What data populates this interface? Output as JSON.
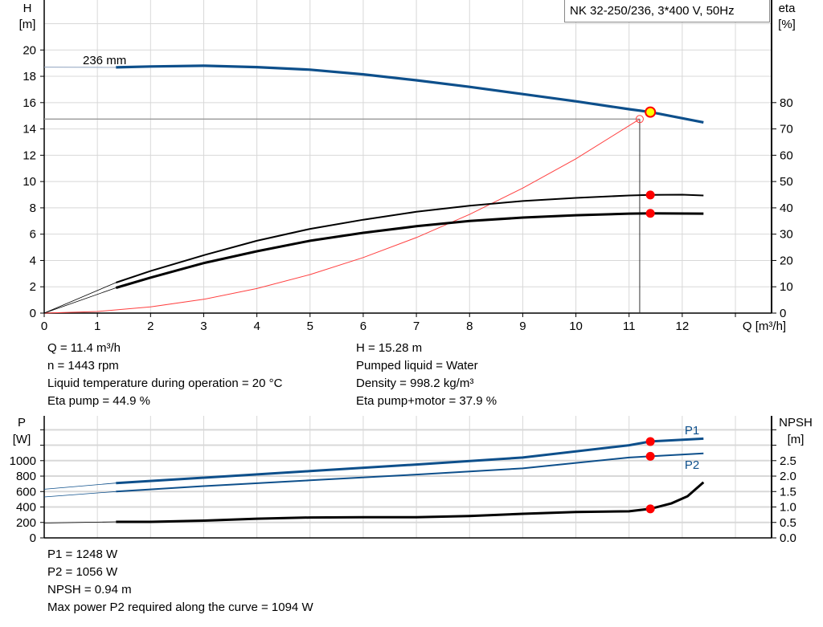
{
  "title": "NK 32-250/236, 3*400 V, 50Hz",
  "chart_data": [
    {
      "type": "line",
      "title": "NK 32-250/236, 3*400 V, 50Hz",
      "xlabel": "Q [m³/h]",
      "ylabel": "H\n[m]",
      "ylabel_parts": [
        "H",
        "[m]"
      ],
      "y2label_parts": [
        "eta",
        "[%]"
      ],
      "xlim": [
        0,
        13.68
      ],
      "ylim": [
        0,
        23.8
      ],
      "y2lim": [
        0,
        119
      ],
      "x_ticks": [
        0,
        1,
        2,
        3,
        4,
        5,
        6,
        7,
        8,
        9,
        10,
        11,
        12
      ],
      "y_ticks": [
        0,
        2,
        4,
        6,
        8,
        10,
        12,
        14,
        16,
        18,
        20
      ],
      "y2_ticks": [
        0,
        10,
        20,
        30,
        40,
        50,
        60,
        70,
        80
      ],
      "grid": true,
      "impeller_label": "236 mm",
      "series": [
        {
          "key": "head",
          "axis": "H",
          "color": "#0d4f8b",
          "x": [
            0,
            1.35,
            2,
            3,
            4,
            5,
            6,
            7,
            8,
            9,
            10,
            11,
            11.4,
            12.4
          ],
          "y": [
            18.7,
            18.68,
            18.75,
            18.8,
            18.7,
            18.5,
            18.15,
            17.7,
            17.2,
            16.65,
            16.1,
            15.5,
            15.28,
            14.5
          ]
        },
        {
          "key": "eta_pump",
          "axis": "eta",
          "color": "#000000",
          "x": [
            0,
            1.35,
            2,
            3,
            4,
            5,
            6,
            7,
            8,
            9,
            10,
            11,
            11.4,
            12,
            12.4
          ],
          "y": [
            0,
            11.6,
            16,
            22,
            27.5,
            32,
            35.5,
            38.5,
            40.8,
            42.6,
            43.8,
            44.7,
            44.9,
            45,
            44.7
          ]
        },
        {
          "key": "eta_pump_motor",
          "axis": "eta",
          "color": "#000000",
          "x": [
            0,
            1.35,
            2,
            3,
            4,
            5,
            6,
            7,
            8,
            9,
            10,
            11,
            11.4,
            12.4
          ],
          "y": [
            0,
            9.6,
            13.5,
            19,
            23.5,
            27.5,
            30.5,
            33,
            35,
            36.3,
            37.2,
            37.8,
            37.9,
            37.8
          ]
        },
        {
          "key": "system_curve",
          "axis": "H",
          "color": "#ff4040",
          "x": [
            0,
            1,
            2,
            3,
            4,
            5,
            6,
            7,
            8,
            9,
            10,
            11.2
          ],
          "y": [
            0,
            0.12,
            0.47,
            1.05,
            1.87,
            2.93,
            4.22,
            5.74,
            7.5,
            9.5,
            11.73,
            14.75
          ]
        }
      ],
      "duty_point": {
        "Q": 11.4,
        "H": 15.28,
        "eta_pump": 44.9,
        "eta_pump_motor": 37.9
      },
      "system_intersection": {
        "Q": 11.2,
        "H": 14.75
      }
    },
    {
      "type": "line",
      "ylabel_parts": [
        "P",
        "[W]"
      ],
      "y2label_parts": [
        "NPSH",
        "[m]"
      ],
      "xlim": [
        0,
        13.68
      ],
      "ylim": [
        0,
        1580
      ],
      "y2lim": [
        0,
        3.95
      ],
      "y_ticks": [
        0,
        200,
        400,
        600,
        800,
        1000
      ],
      "y_ticks_unlabeled": [
        1200,
        1400
      ],
      "y2_ticks": [
        "0.0",
        "0.5",
        "1.0",
        "1.5",
        "2.0",
        "2.5"
      ],
      "y2_ticks_unlabeled": [
        3.0,
        3.5
      ],
      "grid": true,
      "series": [
        {
          "name": "P1",
          "key": "p1",
          "axis": "P",
          "color": "#0d4f8b",
          "x": [
            0,
            1.35,
            3,
            5,
            7,
            9,
            11,
            11.4,
            12.4
          ],
          "y": [
            630,
            710,
            780,
            865,
            950,
            1040,
            1200,
            1248,
            1285
          ]
        },
        {
          "name": "P2",
          "key": "p2",
          "axis": "P",
          "color": "#0d4f8b",
          "x": [
            0,
            1.35,
            3,
            5,
            7,
            9,
            11,
            11.4,
            12.4
          ],
          "y": [
            530,
            600,
            670,
            745,
            820,
            900,
            1040,
            1056,
            1095
          ]
        },
        {
          "key": "npsh",
          "axis": "NPSH",
          "color": "#000000",
          "x": [
            0,
            1,
            1.35,
            2,
            3,
            4,
            5,
            6,
            7,
            8,
            9,
            10,
            11,
            11.4,
            11.8,
            12.1,
            12.4
          ],
          "y": [
            0.48,
            0.51,
            0.52,
            0.52,
            0.56,
            0.62,
            0.66,
            0.67,
            0.67,
            0.71,
            0.78,
            0.84,
            0.86,
            0.94,
            1.12,
            1.35,
            1.8
          ]
        }
      ],
      "duty_point": {
        "Q": 11.4,
        "P1": 1248,
        "P2": 1056,
        "NPSH": 0.94
      }
    }
  ],
  "info_top_left": [
    "Q = 11.4 m³/h",
    "n = 1443 rpm",
    "Liquid temperature during operation = 20 °C",
    "Eta pump = 44.9 %"
  ],
  "info_top_right": [
    "H = 15.28 m",
    "Pumped liquid = Water",
    "Density = 998.2 kg/m³",
    "Eta pump+motor = 37.9 %"
  ],
  "info_bottom": [
    "P1 = 1248 W",
    "P2 = 1056 W",
    "NPSH = 0.94 m",
    "Max power P2 required along the curve = 1094 W"
  ],
  "colors": {
    "head": "#0d4f8b",
    "duty_fill": "#ffff00",
    "duty_marker": "#ff0000",
    "grid": "#d8d8d8"
  }
}
